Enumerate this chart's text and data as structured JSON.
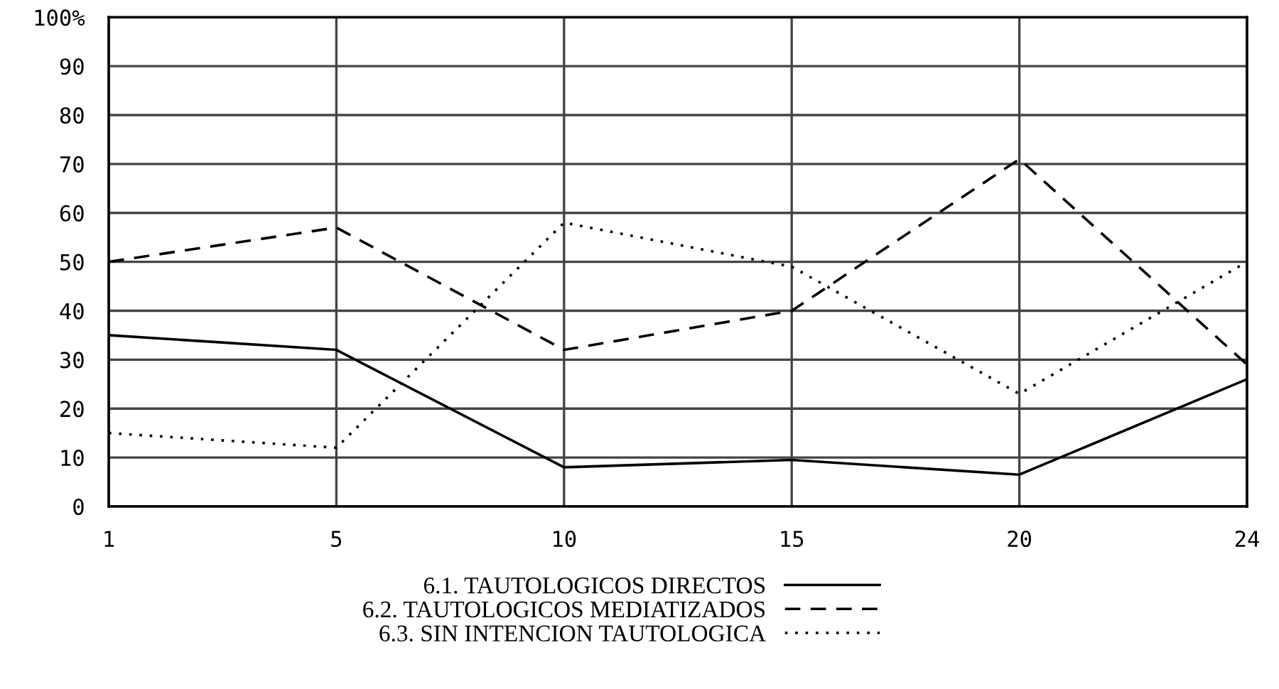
{
  "chart_data": {
    "type": "line",
    "categories": [
      "1",
      "5",
      "10",
      "15",
      "20",
      "24"
    ],
    "series": [
      {
        "name": "6.1. TAUTOLOGICOS DIRECTOS",
        "color": "#000000",
        "line_style": "solid",
        "values": [
          35,
          32,
          8,
          9.5,
          6.5,
          26
        ]
      },
      {
        "name": "6.2. TAUTOLOGICOS MEDIATIZADOS",
        "color": "#000000",
        "line_style": "dashed",
        "values": [
          50,
          57,
          32,
          40,
          71,
          29
        ]
      },
      {
        "name": "6.3. SIN INTENCION TAUTOLOGICA",
        "color": "#000000",
        "line_style": "dotted",
        "values": [
          15,
          12,
          58,
          49,
          23,
          50
        ]
      }
    ],
    "ylim": [
      0,
      100
    ],
    "yticks": [
      0,
      10,
      20,
      30,
      40,
      50,
      60,
      70,
      80,
      90,
      {
        "value": 100,
        "label": "100%"
      }
    ],
    "grid": true,
    "legend": "bottom",
    "marker": "none"
  }
}
